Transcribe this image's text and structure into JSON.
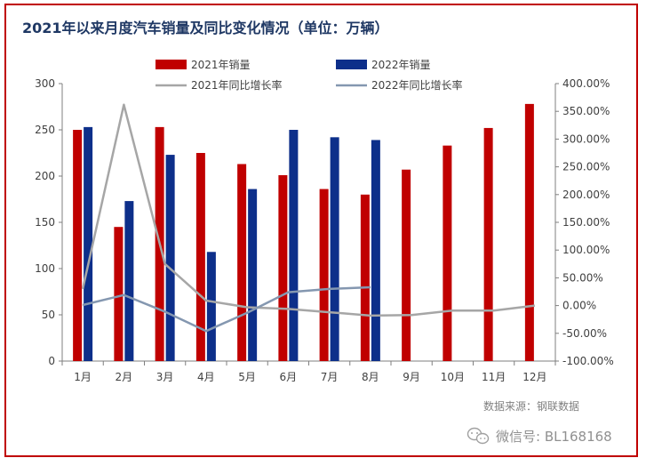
{
  "chart_data": {
    "type": "bar",
    "title": "2021年以来月度汽车销量及同比变化情况（单位：万辆）",
    "categories": [
      "1月",
      "2月",
      "3月",
      "4月",
      "5月",
      "6月",
      "7月",
      "8月",
      "9月",
      "10月",
      "11月",
      "12月"
    ],
    "series": [
      {
        "name": "2021年销量",
        "kind": "bar",
        "axis": "left",
        "color": "#c00000",
        "values": [
          250,
          145,
          253,
          225,
          213,
          201,
          186,
          180,
          207,
          233,
          252,
          278
        ]
      },
      {
        "name": "2022年销量",
        "kind": "bar",
        "axis": "left",
        "color": "#0d2f8a",
        "values": [
          253,
          173,
          223,
          118,
          186,
          250,
          242,
          239,
          null,
          null,
          null,
          null
        ]
      },
      {
        "name": "2021年同比增长率",
        "kind": "line",
        "axis": "right",
        "color": "#a6a6a6",
        "values": [
          30,
          362,
          75,
          9,
          -3,
          -6,
          -12,
          -18,
          -17,
          -9,
          -9,
          0
        ]
      },
      {
        "name": "2022年同比增长率",
        "kind": "line",
        "axis": "right",
        "color": "#8497b0",
        "values": [
          1,
          19,
          -11,
          -46,
          -13,
          24,
          30,
          33,
          null,
          null,
          null,
          null
        ]
      }
    ],
    "y_left": {
      "range": [
        0,
        300
      ],
      "ticks": [
        "0",
        "50",
        "100",
        "150",
        "200",
        "250",
        "300"
      ]
    },
    "y_right": {
      "range": [
        -100,
        400
      ],
      "ticks": [
        "-100.00%",
        "-50.00%",
        "0.00%",
        "50.00%",
        "100.00%",
        "150.00%",
        "200.00%",
        "250.00%",
        "300.00%",
        "350.00%",
        "400.00%"
      ]
    },
    "grid": false,
    "legend_position": "top"
  },
  "source": "数据来源：钢联数据",
  "watermark": {
    "icon": "wechat-icon",
    "text": "微信号: BL168168"
  }
}
